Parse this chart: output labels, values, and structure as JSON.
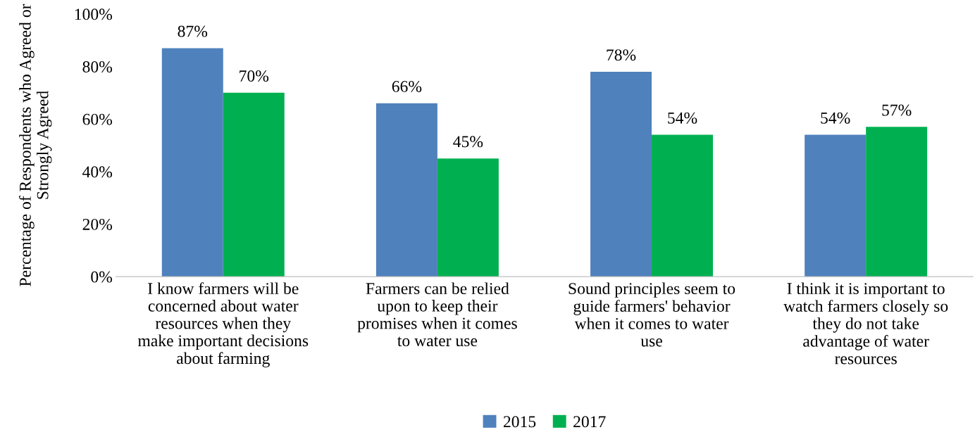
{
  "chart_data": {
    "type": "bar",
    "ylabel": "Percentage of Respondents who Agreed or\nStrongly Agreed",
    "categories": [
      "I know farmers will be\nconcerned about water\nresources when they\nmake important decisions\nabout farming",
      "Farmers can be relied\nupon to keep their\npromises when it comes\nto water use",
      "Sound principles seem to\nguide farmers' behavior\nwhen it comes to water\nuse",
      "I think it is important to\nwatch farmers closely so\nthey do not take\nadvantage of water\nresources"
    ],
    "series": [
      {
        "name": "2015",
        "color": "#4f81bd",
        "values": [
          87,
          66,
          78,
          54
        ],
        "value_labels": [
          "87%",
          "66%",
          "78%",
          "54%"
        ]
      },
      {
        "name": "2017",
        "color": "#00b050",
        "values": [
          70,
          45,
          54,
          57
        ],
        "value_labels": [
          "70%",
          "45%",
          "54%",
          "57%"
        ]
      }
    ],
    "ylim": [
      0,
      100
    ],
    "yticks": [
      {
        "value": 0,
        "label": "0%"
      },
      {
        "value": 20,
        "label": "20%"
      },
      {
        "value": 40,
        "label": "40%"
      },
      {
        "value": 60,
        "label": "60%"
      },
      {
        "value": 80,
        "label": "80%"
      },
      {
        "value": 100,
        "label": "100%"
      }
    ],
    "grid": false,
    "legend": "bottom"
  }
}
